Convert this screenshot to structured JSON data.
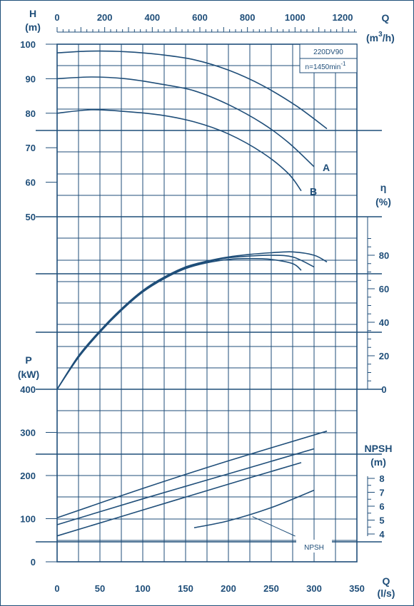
{
  "chart_data": {
    "type": "line",
    "colors": {
      "ink": "#1f4e79",
      "background": "#ffffff"
    },
    "annotation": {
      "model": "220DV90",
      "speed": "n=1450min",
      "speed_sup": "-1"
    },
    "axes": {
      "q_top": {
        "label": "Q",
        "unit_parts": [
          "(m",
          "3",
          "/h)"
        ],
        "range": [
          0,
          1250
        ],
        "ticks": [
          0,
          200,
          400,
          600,
          800,
          1000,
          1200
        ]
      },
      "q_bottom": {
        "label": "Q",
        "unit": "(l/s)",
        "range": [
          0,
          350
        ],
        "ticks": [
          0,
          50,
          100,
          150,
          200,
          250,
          300,
          350
        ]
      },
      "head": {
        "label": "H",
        "unit": "(m)",
        "range": [
          50,
          100
        ],
        "ticks": [
          50,
          60,
          70,
          80,
          90,
          100
        ]
      },
      "efficiency": {
        "label": "η",
        "unit": "(%)",
        "range": [
          0,
          90
        ],
        "ticks": [
          0,
          20,
          40,
          60,
          80
        ]
      },
      "power": {
        "label": "P",
        "unit": "(kW)",
        "range": [
          0,
          400
        ],
        "ticks": [
          0,
          100,
          200,
          300,
          400
        ]
      },
      "npsh": {
        "label": "NPSH",
        "unit": "(m)",
        "range": [
          4,
          8
        ],
        "ticks": [
          4,
          5,
          6,
          7,
          8
        ]
      }
    },
    "head_curves": [
      {
        "name": "",
        "x_ls": [
          0,
          40,
          80,
          120,
          160,
          200,
          240,
          280,
          315
        ],
        "y": [
          97.5,
          98,
          97.8,
          97,
          95.5,
          92.5,
          88,
          82,
          75.5
        ]
      },
      {
        "name": "A",
        "x_ls": [
          0,
          40,
          80,
          120,
          160,
          200,
          240,
          270,
          300
        ],
        "y": [
          90,
          90.5,
          90,
          88.5,
          86.5,
          82.5,
          77,
          71.5,
          64.5
        ]
      },
      {
        "name": "B",
        "x_ls": [
          0,
          40,
          80,
          120,
          160,
          200,
          240,
          270,
          285
        ],
        "y": [
          80,
          81,
          80.5,
          79.5,
          77.5,
          74,
          68.5,
          62.5,
          57.5
        ]
      }
    ],
    "efficiency_curves": [
      {
        "name": "",
        "x_ls": [
          0,
          25,
          50,
          75,
          100,
          125,
          150,
          175,
          200,
          225,
          250,
          275,
          300,
          315
        ],
        "y": [
          0,
          20,
          35,
          48,
          59,
          67,
          73,
          76.5,
          79,
          80.5,
          81.5,
          82,
          80,
          76
        ]
      },
      {
        "name": "",
        "x_ls": [
          0,
          25,
          50,
          75,
          100,
          125,
          150,
          175,
          200,
          225,
          250,
          275,
          300
        ],
        "y": [
          0,
          19.5,
          34.5,
          47.5,
          58.5,
          66.5,
          72.5,
          76,
          78.5,
          79.5,
          80,
          79,
          73
        ]
      },
      {
        "name": "",
        "x_ls": [
          0,
          25,
          50,
          75,
          100,
          125,
          150,
          175,
          200,
          225,
          250,
          275,
          285
        ],
        "y": [
          0,
          19,
          34,
          47,
          58,
          66,
          72,
          75.5,
          77.5,
          78,
          77.5,
          75,
          71
        ]
      }
    ],
    "power_curves": [
      {
        "name": "",
        "x_ls": [
          0,
          100,
          200,
          315
        ],
        "y": [
          102,
          170,
          234,
          303
        ]
      },
      {
        "name": "",
        "x_ls": [
          0,
          100,
          200,
          300
        ],
        "y": [
          86,
          146,
          204,
          262
        ]
      },
      {
        "name": "",
        "x_ls": [
          0,
          100,
          200,
          285
        ],
        "y": [
          60,
          120,
          180,
          230
        ]
      }
    ],
    "npsh_curve": {
      "name": "NPSH",
      "x_ls": [
        160,
        200,
        250,
        300
      ],
      "y": [
        4.45,
        4.95,
        5.9,
        7.15
      ]
    },
    "npsh_label": "NPSH"
  }
}
